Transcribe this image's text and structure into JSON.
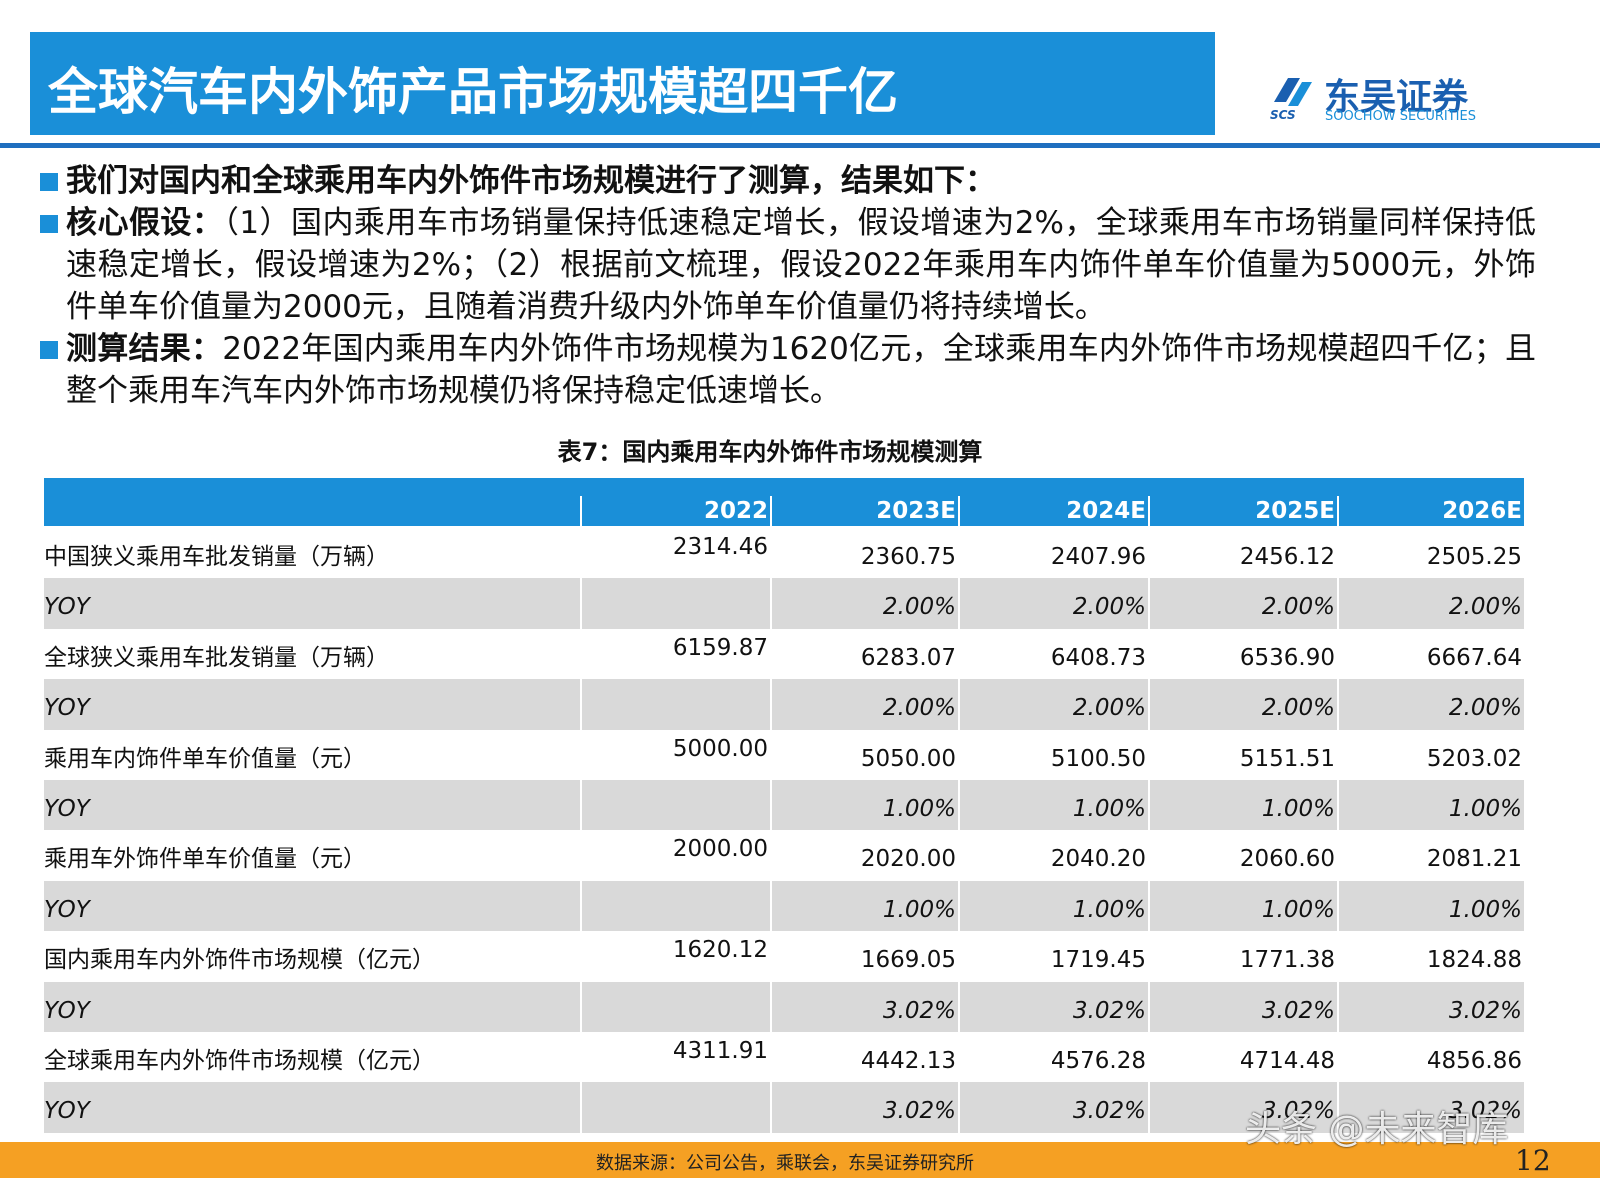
{
  "header": {
    "title": "全球汽车内外饰产品市场规模超四千亿"
  },
  "logo": {
    "abbr": "SCS",
    "name": "东吴证券",
    "sub": "SOOCHOW SECURITIES"
  },
  "bullets": [
    {
      "label": "我们对国内和全球乘用车内外饰件市场规模进行了测算，结果如下："
    },
    {
      "label": "核心假设：",
      "text": "（1）国内乘用车市场销量保持低速稳定增长，假设增速为2%，全球乘用车市场销量同样保持低速稳定增长，假设增速为2%；（2）根据前文梳理，假设2022年乘用车内饰件单车价值量为5000元，外饰件单车价值量为2000元，且随着消费升级内外饰单车价值量仍将持续增长。"
    },
    {
      "label": "测算结果：",
      "text": "2022年国内乘用车内外饰件市场规模为1620亿元，全球乘用车内外饰件市场规模超四千亿；且整个乘用车汽车内外饰市场规模仍将保持稳定低速增长。"
    }
  ],
  "table": {
    "caption": "表7：国内乘用车内外饰件市场规模测算",
    "header": [
      "2022",
      "2023E",
      "2024E",
      "2025E",
      "2026E"
    ],
    "rows": [
      {
        "label": "中国狭义乘用车批发销量（万辆）",
        "values": [
          "2314.46",
          "2360.75",
          "2407.96",
          "2456.12",
          "2505.25"
        ]
      },
      {
        "label": "YOY",
        "values": [
          "2.00%",
          "2.00%",
          "2.00%",
          "2.00%"
        ]
      },
      {
        "label": "全球狭义乘用车批发销量（万辆）",
        "values": [
          "6159.87",
          "6283.07",
          "6408.73",
          "6536.90",
          "6667.64"
        ]
      },
      {
        "label": "YOY",
        "values": [
          "2.00%",
          "2.00%",
          "2.00%",
          "2.00%"
        ]
      },
      {
        "label": "乘用车内饰件单车价值量（元）",
        "values": [
          "5000.00",
          "5050.00",
          "5100.50",
          "5151.51",
          "5203.02"
        ]
      },
      {
        "label": "YOY",
        "values": [
          "1.00%",
          "1.00%",
          "1.00%",
          "1.00%"
        ]
      },
      {
        "label": "乘用车外饰件单车价值量（元）",
        "values": [
          "2000.00",
          "2020.00",
          "2040.20",
          "2060.60",
          "2081.21"
        ]
      },
      {
        "label": "YOY",
        "values": [
          "1.00%",
          "1.00%",
          "1.00%",
          "1.00%"
        ]
      },
      {
        "label": "国内乘用车内外饰件市场规模（亿元）",
        "values": [
          "1620.12",
          "1669.05",
          "1719.45",
          "1771.38",
          "1824.88"
        ]
      },
      {
        "label": "YOY",
        "values": [
          "3.02%",
          "3.02%",
          "3.02%",
          "3.02%"
        ]
      },
      {
        "label": "全球乘用车内外饰件市场规模（亿元）",
        "values": [
          "4311.91",
          "4442.13",
          "4576.28",
          "4714.48",
          "4856.86"
        ]
      },
      {
        "label": "YOY",
        "values": [
          "3.02%",
          "3.02%",
          "3.02%",
          "3.02%"
        ]
      }
    ]
  },
  "footer": {
    "source": "数据来源：公司公告，乘联会，东吴证券研究所",
    "page": "12"
  },
  "watermark": "头条 @未来智库"
}
